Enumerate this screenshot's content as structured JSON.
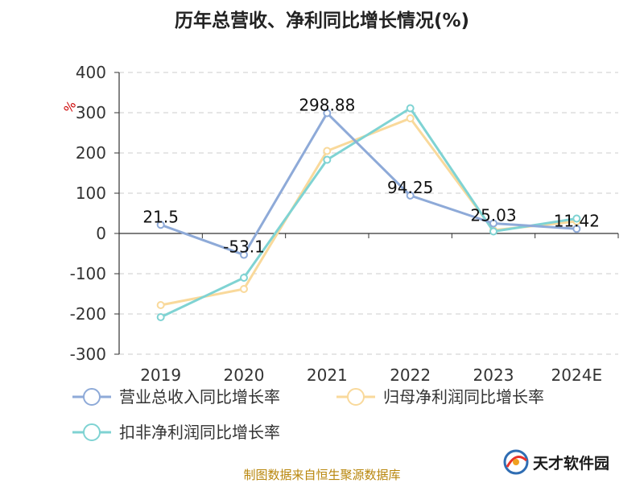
{
  "chart_data": {
    "type": "line",
    "title": "历年总营收、净利同比增长情况(%)",
    "unit": "%",
    "categories": [
      "2019",
      "2020",
      "2021",
      "2022",
      "2023",
      "2024E"
    ],
    "ylim": [
      -300,
      400
    ],
    "yticks": [
      400,
      300,
      200,
      100,
      0,
      -100,
      -200,
      -300
    ],
    "grid": true,
    "legend_position": "bottom",
    "series": [
      {
        "name": "营业总收入同比增长率",
        "color": "#8eaad8",
        "values": [
          21.5,
          -53.1,
          298.88,
          94.25,
          25.03,
          11.42
        ],
        "labels": [
          "21.5",
          "-53.1",
          "298.88",
          "94.25",
          "25.03",
          "11.42"
        ]
      },
      {
        "name": "归母净利润同比增长率",
        "color": "#f9d99b",
        "values": [
          -178,
          -138,
          205,
          286,
          8,
          30
        ]
      },
      {
        "name": "扣非净利润同比增长率",
        "color": "#7fd3d3",
        "values": [
          -208,
          -110,
          183,
          311,
          5,
          37
        ]
      }
    ]
  },
  "footer": {
    "source": "制图数据来自恒生聚源数据库",
    "brand": "天才软件园",
    "brand_icon": "swirl-logo-icon"
  }
}
